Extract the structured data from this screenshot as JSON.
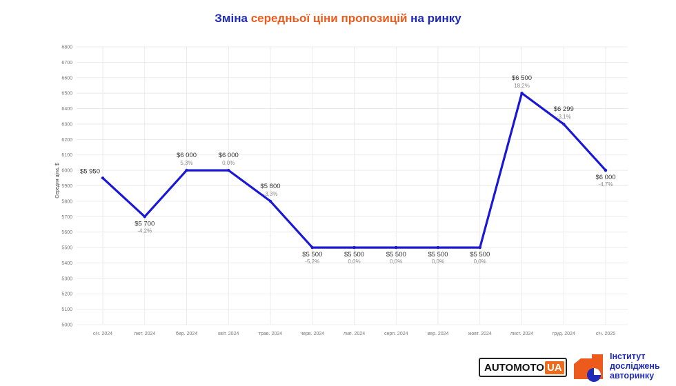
{
  "title": {
    "part1": "Зміна ",
    "part2": "середньої ціни пропозицій",
    "part3": " на ринку"
  },
  "colors": {
    "line": "#1a18d6",
    "title_blue": "#1f2bb8",
    "title_orange": "#ec5a1c",
    "grid": "#e6e6e6"
  },
  "chart_data": {
    "type": "line",
    "title": "Зміна середньої ціни пропозицій на ринку",
    "xlabel": "",
    "ylabel": "Середня ціна, $",
    "ylim": [
      5000,
      6800
    ],
    "yticks": [
      5000,
      5100,
      5200,
      5300,
      5400,
      5500,
      5600,
      5700,
      5800,
      5900,
      6000,
      6100,
      6200,
      6300,
      6400,
      6500,
      6600,
      6700,
      6800
    ],
    "grid": true,
    "categories": [
      "січ. 2024",
      "лют. 2024",
      "бер. 2024",
      "квіт. 2024",
      "трав. 2024",
      "черв. 2024",
      "лип. 2024",
      "серп. 2024",
      "вер. 2024",
      "жовт. 2024",
      "лист. 2024",
      "груд. 2024",
      "січ. 2025"
    ],
    "values": [
      5950,
      5700,
      6000,
      6000,
      5800,
      5500,
      5500,
      5500,
      5500,
      5500,
      6500,
      6299,
      6000
    ],
    "value_labels": [
      "$5 950",
      "$5 700",
      "$6 000",
      "$6 000",
      "$5 800",
      "$5 500",
      "$5 500",
      "$5 500",
      "$5 500",
      "$5 500",
      "$6 500",
      "$6 299",
      "$6 000"
    ],
    "change_labels": [
      "",
      "-4,2%",
      "5,3%",
      "0,0%",
      "-3,3%",
      "-5,2%",
      "0,0%",
      "0,0%",
      "0,0%",
      "0,0%",
      "18,2%",
      "-3,1%",
      "-4,7%"
    ]
  },
  "logos": {
    "automoto_main": "AUTOMOTO",
    "automoto_suffix": "UA",
    "institute_line1": "Інститут",
    "institute_line2": "досліджень",
    "institute_line3": "авторинку"
  }
}
